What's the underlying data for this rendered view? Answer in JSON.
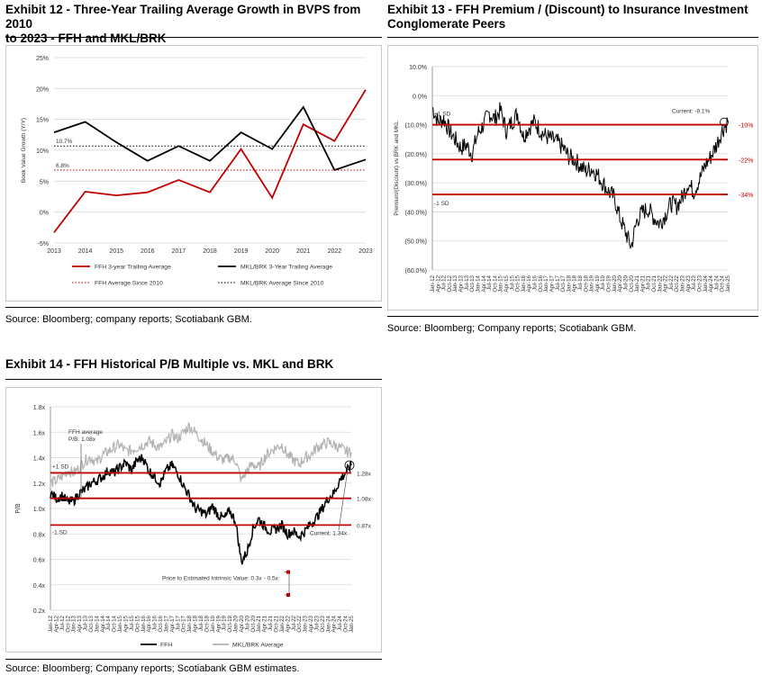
{
  "exhibit12": {
    "title_line1": "Exhibit 12 - Three-Year Trailing Average Growth in BVPS from 2010",
    "title_line2": "to 2023 - FFH and MKL/BRK",
    "source": "Source: Bloomberg; company reports; Scotiabank GBM."
  },
  "exhibit13": {
    "title_line1": "Exhibit 13 - FFH Premium / (Discount) to Insurance Investment",
    "title_line2": "Conglomerate Peers",
    "source": "Source: Bloomberg; Company reports; Scotiabank GBM."
  },
  "exhibit14": {
    "title_line1": "Exhibit 14 - FFH Historical P/B Multiple vs. MKL and BRK",
    "source": "Source: Bloomberg; Company reports; Scotiabank GBM estimates."
  },
  "colors": {
    "ffh_red": "#c00000",
    "peer_black": "#000000",
    "peer_gray": "#b3b3b3",
    "axis": "#7f7f7f",
    "grid": "#d9d9d9"
  },
  "chart_data": [
    {
      "type": "line",
      "title": "",
      "ylabel": "Book Value Growth (Y/Y)",
      "xlabel": "",
      "x": [
        "2013",
        "2014",
        "2015",
        "2016",
        "2017",
        "2018",
        "2019",
        "2020",
        "2021",
        "2022",
        "2023"
      ],
      "yticks": [
        "25%",
        "20%",
        "15%",
        "10%",
        "5%",
        "0%",
        "-5%"
      ],
      "ylim": [
        -5,
        25
      ],
      "grid": true,
      "series": [
        {
          "name": "FFH 3-year Trailing Average",
          "color": "#c00000",
          "style": "solid",
          "values": [
            -3.3,
            3.3,
            2.7,
            3.2,
            5.2,
            3.2,
            10.2,
            2.3,
            14.2,
            11.5,
            19.8
          ]
        },
        {
          "name": "MKL/BRK 3-Year Trailing Average",
          "color": "#000000",
          "style": "solid",
          "values": [
            12.9,
            14.6,
            11.3,
            8.3,
            10.7,
            8.3,
            12.9,
            10.2,
            17.0,
            6.8,
            8.5
          ]
        },
        {
          "name": "FFH Average Since 2010",
          "color": "#c00000",
          "style": "dotted",
          "constant": 6.8,
          "label": "6.8%"
        },
        {
          "name": "MKL/BRK Average Since 2010",
          "color": "#000000",
          "style": "dotted",
          "constant": 10.7,
          "label": "10.7%"
        }
      ],
      "legend_position": "bottom"
    },
    {
      "type": "line",
      "title": "",
      "ylabel": "Premium/(Discount) vs BRK and MKL",
      "yticks": [
        "10.0%",
        "0.0%",
        "(10.0%)",
        "(20.0%)",
        "(30.0%)",
        "(40.0%)",
        "(50.0%)",
        "(60.0%)"
      ],
      "ylim": [
        -60,
        10
      ],
      "xlabels": [
        "Jan-12",
        "Apr-12",
        "Jul-12",
        "Oct-12",
        "Jan-13",
        "Apr-13",
        "Jul-13",
        "Oct-13",
        "Jan-14",
        "Apr-14",
        "Jul-14",
        "Oct-14",
        "Jan-15",
        "Apr-15",
        "Jul-15",
        "Oct-15",
        "Jan-16",
        "Apr-16",
        "Jul-16",
        "Oct-16",
        "Jan-17",
        "Apr-17",
        "Jul-17",
        "Oct-17",
        "Jan-18",
        "Apr-18",
        "Jul-18",
        "Oct-18",
        "Jan-19",
        "Apr-19",
        "Jul-19",
        "Oct-19",
        "Jan-20",
        "Apr-20",
        "Jul-20",
        "Oct-20",
        "Jan-21",
        "Apr-21",
        "Jul-21",
        "Oct-21",
        "Jan-22",
        "Apr-22",
        "Jul-22",
        "Oct-22",
        "Jan-23",
        "Apr-23",
        "Jul-23",
        "Oct-23",
        "Jan-24",
        "Apr-24",
        "Jul-24",
        "Oct-24",
        "Jan-25"
      ],
      "series": [
        {
          "name": "FFH premium/(discount)",
          "color": "#000000",
          "values": [
            -4,
            -9,
            -8,
            -12,
            -15,
            -18,
            -17,
            -20,
            -13,
            -10,
            -6,
            -8,
            -5,
            -12,
            -9,
            -6,
            -14,
            -11,
            -9,
            -12,
            -14,
            -15,
            -16,
            -18,
            -21,
            -22,
            -24,
            -26,
            -25,
            -27,
            -30,
            -33,
            -35,
            -42,
            -47,
            -52,
            -43,
            -40,
            -39,
            -42,
            -44,
            -41,
            -37,
            -38,
            -35,
            -30,
            -33,
            -29,
            -24,
            -21,
            -17,
            -12,
            -9
          ]
        }
      ],
      "reference_lines": [
        {
          "label": "+1 SD",
          "value": -10,
          "side_label": "-10%"
        },
        {
          "label": "",
          "value": -22,
          "side_label": "-22%"
        },
        {
          "label": "-1 SD",
          "value": -34,
          "side_label": "-34%"
        }
      ],
      "annotation": "Current: -9.1%",
      "current_value": -9.1
    },
    {
      "type": "line",
      "title": "",
      "ylabel": "P/B",
      "yticks": [
        "1.8x",
        "1.6x",
        "1.4x",
        "1.2x",
        "1.0x",
        "0.8x",
        "0.6x",
        "0.4x",
        "0.2x"
      ],
      "ylim": [
        0.2,
        1.8
      ],
      "xlabels": [
        "Jan-12",
        "Apr-12",
        "Jul-12",
        "Oct-12",
        "Jan-13",
        "Apr-13",
        "Jul-13",
        "Oct-13",
        "Jan-14",
        "Apr-14",
        "Jul-14",
        "Oct-14",
        "Jan-15",
        "Apr-15",
        "Jul-15",
        "Oct-15",
        "Jan-16",
        "Apr-16",
        "Jul-16",
        "Oct-16",
        "Jan-17",
        "Apr-17",
        "Jul-17",
        "Oct-17",
        "Jan-18",
        "Apr-18",
        "Jul-18",
        "Oct-18",
        "Jan-19",
        "Apr-19",
        "Jul-19",
        "Oct-19",
        "Jan-20",
        "Apr-20",
        "Jul-20",
        "Oct-20",
        "Jan-21",
        "Apr-21",
        "Jul-21",
        "Oct-21",
        "Jan-22",
        "Apr-22",
        "Jul-22",
        "Oct-22",
        "Jan-23",
        "Apr-23",
        "Jul-23",
        "Oct-23",
        "Jan-24",
        "Apr-24",
        "Jul-24",
        "Oct-24",
        "Jan-25"
      ],
      "series": [
        {
          "name": "FFH",
          "color": "#000000",
          "values": [
            1.12,
            1.08,
            1.1,
            1.05,
            1.06,
            1.12,
            1.15,
            1.2,
            1.22,
            1.25,
            1.3,
            1.28,
            1.32,
            1.36,
            1.3,
            1.38,
            1.4,
            1.3,
            1.25,
            1.2,
            1.3,
            1.34,
            1.28,
            1.18,
            1.1,
            1.0,
            0.98,
            0.95,
            1.02,
            0.95,
            0.92,
            0.98,
            0.9,
            0.58,
            0.66,
            0.84,
            0.92,
            0.86,
            0.82,
            0.84,
            0.87,
            0.8,
            0.82,
            0.78,
            0.82,
            0.88,
            0.93,
            1.0,
            1.08,
            1.12,
            1.22,
            1.28,
            1.34
          ]
        },
        {
          "name": "MKL/BRK Average",
          "color": "#b3b3b3",
          "values": [
            1.2,
            1.22,
            1.25,
            1.3,
            1.28,
            1.32,
            1.38,
            1.4,
            1.36,
            1.42,
            1.45,
            1.48,
            1.5,
            1.45,
            1.46,
            1.48,
            1.5,
            1.53,
            1.5,
            1.48,
            1.52,
            1.58,
            1.55,
            1.6,
            1.65,
            1.6,
            1.55,
            1.5,
            1.45,
            1.4,
            1.38,
            1.4,
            1.38,
            1.22,
            1.3,
            1.35,
            1.32,
            1.4,
            1.45,
            1.48,
            1.5,
            1.42,
            1.38,
            1.35,
            1.4,
            1.42,
            1.48,
            1.5,
            1.52,
            1.5,
            1.48,
            1.45,
            1.44
          ]
        }
      ],
      "reference_lines": [
        {
          "label": "+1 SD",
          "value": 1.28,
          "side_label": "1.28x"
        },
        {
          "label": "FFH average P/B:  1.08x",
          "value": 1.08,
          "side_label": "1.08x"
        },
        {
          "label": "-1 SD",
          "value": 0.87,
          "side_label": "0.87x"
        }
      ],
      "annotation_current": "Current:  1.34x",
      "annotation_intrinsic": "Price to Estimated Intrinsic Value: 0.3x - 0.5x",
      "intrinsic_range": [
        0.3,
        0.5
      ],
      "legend_position": "bottom"
    }
  ]
}
